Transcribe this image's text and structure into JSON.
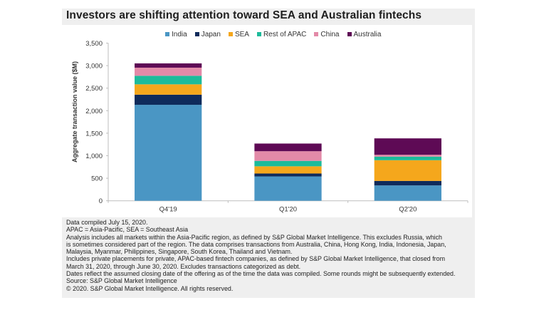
{
  "title": "Investors are shifting attention toward SEA and Australian fintechs",
  "chart_data": {
    "type": "bar",
    "stacked": true,
    "title": "Investors are shifting attention toward SEA and Australian fintechs",
    "xlabel": "",
    "ylabel": "Aggregate transaction value ($M)",
    "ylim": [
      0,
      3500
    ],
    "yticks": [
      0,
      500,
      1000,
      1500,
      2000,
      2500,
      3000,
      3500
    ],
    "ytick_labels": [
      "0",
      "500",
      "1,000",
      "1,500",
      "2,000",
      "2,500",
      "3,000",
      "3,500"
    ],
    "categories": [
      "Q4'19",
      "Q1'20",
      "Q2'20"
    ],
    "legend_position": "top-center",
    "grid": false,
    "series": [
      {
        "name": "India",
        "color": "#4a96c4",
        "values": [
          2130,
          540,
          340
        ]
      },
      {
        "name": "Japan",
        "color": "#0f2b5b",
        "values": [
          225,
          65,
          100
        ]
      },
      {
        "name": "SEA",
        "color": "#f5a71c",
        "values": [
          230,
          160,
          460
        ]
      },
      {
        "name": "Rest of APAC",
        "color": "#1dbb9b",
        "values": [
          190,
          120,
          80
        ]
      },
      {
        "name": "China",
        "color": "#e38aa8",
        "values": [
          180,
          215,
          40
        ]
      },
      {
        "name": "Australia",
        "color": "#5e0a55",
        "values": [
          95,
          170,
          365
        ]
      }
    ]
  },
  "footnotes": [
    "Data compiled July 15, 2020.",
    "APAC = Asia-Pacific, SEA = Southeast Asia",
    "Analysis includes all markets within the Asia-Pacific region, as defined by S&P Global Market Intelligence. This excludes Russia, which",
    "is sometimes considered part of the region. The data comprises transactions from Australia, China, Hong Kong, India, Indonesia, Japan,",
    "Malaysia, Myanmar, Philippines, Singapore, South Korea, Thailand and Vietnam.",
    "Includes private placements for private, APAC-based fintech companies, as defined by S&P Global Market Intelligence, that closed from",
    "March 31, 2020, through June 30, 2020. Excludes transactions categorized as debt.",
    "Dates reflect the assumed closing date of the offering as of the time the data was compiled. Some rounds might be subsequently extended.",
    "Source: S&P Global Market Intelligence",
    "© 2020. S&P Global Market Intelligence. All rights reserved."
  ]
}
